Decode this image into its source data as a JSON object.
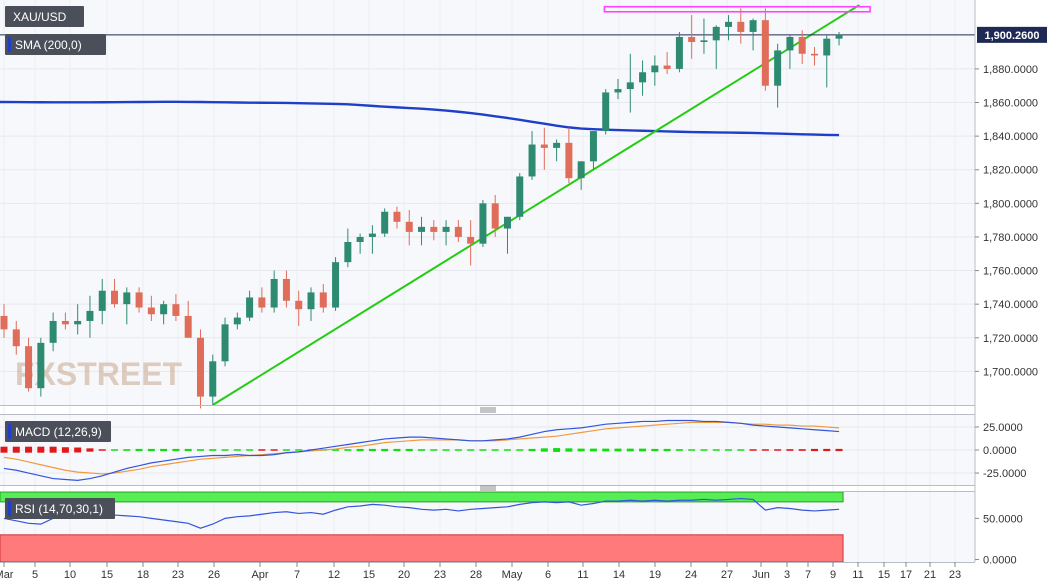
{
  "symbol_label": "XAU/USD",
  "price_tag": "1,900.2600",
  "watermark": "FXSTREET",
  "colors": {
    "up": "#2e8b72",
    "down": "#e06c5a",
    "sma": "#1f3fc9",
    "trendline": "#22cc11",
    "resistance": "#ff44ff",
    "macd_line": "#3355dd",
    "signal_line": "#f09a40",
    "hist_pos": "#11dd11",
    "hist_neg": "#e01818",
    "rsi_line": "#3355dd",
    "rsi_over": "#55ee55",
    "rsi_under": "#ff7b7b",
    "panel_bg": "#f7f8fb"
  },
  "chart_data": [
    {
      "type": "candlestick",
      "title": "XAU/USD",
      "ylim": [
        1680,
        1921
      ],
      "y_ticks": [
        "1,700.0000",
        "1,720.0000",
        "1,740.0000",
        "1,760.0000",
        "1,780.0000",
        "1,800.0000",
        "1,820.0000",
        "1,840.0000",
        "1,860.0000",
        "1,880.0000"
      ],
      "y_tick_values": [
        1700,
        1720,
        1740,
        1760,
        1780,
        1800,
        1820,
        1840,
        1860,
        1880
      ],
      "x_tick_labels": [
        "Mar",
        "5",
        "10",
        "15",
        "18",
        "23",
        "26",
        "Apr",
        "7",
        "12",
        "15",
        "20",
        "23",
        "28",
        "May",
        "6",
        "11",
        "14",
        "19",
        "24",
        "27",
        "Jun",
        "3",
        "7",
        "9",
        "11",
        "15",
        "17",
        "21",
        "23"
      ],
      "candles": [
        [
          1733,
          1740,
          1720,
          1725
        ],
        [
          1725,
          1730,
          1710,
          1715
        ],
        [
          1715,
          1720,
          1688,
          1690
        ],
        [
          1690,
          1720,
          1685,
          1717
        ],
        [
          1717,
          1735,
          1712,
          1730
        ],
        [
          1730,
          1735,
          1725,
          1728
        ],
        [
          1728,
          1740,
          1722,
          1730
        ],
        [
          1730,
          1745,
          1720,
          1736
        ],
        [
          1736,
          1755,
          1728,
          1748
        ],
        [
          1748,
          1755,
          1738,
          1740
        ],
        [
          1740,
          1750,
          1728,
          1747
        ],
        [
          1747,
          1750,
          1735,
          1738
        ],
        [
          1738,
          1745,
          1730,
          1734
        ],
        [
          1734,
          1742,
          1728,
          1740
        ],
        [
          1740,
          1746,
          1730,
          1733
        ],
        [
          1733,
          1742,
          1720,
          1720
        ],
        [
          1720,
          1725,
          1678,
          1685
        ],
        [
          1685,
          1710,
          1680,
          1706
        ],
        [
          1706,
          1732,
          1703,
          1728
        ],
        [
          1728,
          1735,
          1725,
          1732
        ],
        [
          1732,
          1748,
          1730,
          1744
        ],
        [
          1744,
          1750,
          1735,
          1738
        ],
        [
          1738,
          1760,
          1735,
          1755
        ],
        [
          1755,
          1760,
          1738,
          1742
        ],
        [
          1742,
          1748,
          1727,
          1737
        ],
        [
          1737,
          1750,
          1730,
          1747
        ],
        [
          1747,
          1752,
          1735,
          1738
        ],
        [
          1738,
          1768,
          1736,
          1765
        ],
        [
          1765,
          1785,
          1762,
          1777
        ],
        [
          1777,
          1782,
          1770,
          1780
        ],
        [
          1780,
          1787,
          1770,
          1782
        ],
        [
          1782,
          1797,
          1780,
          1795
        ],
        [
          1795,
          1798,
          1785,
          1789
        ],
        [
          1789,
          1796,
          1775,
          1783
        ],
        [
          1783,
          1792,
          1775,
          1786
        ],
        [
          1786,
          1790,
          1778,
          1783
        ],
        [
          1783,
          1790,
          1775,
          1786
        ],
        [
          1786,
          1790,
          1777,
          1780
        ],
        [
          1780,
          1790,
          1763,
          1776
        ],
        [
          1776,
          1802,
          1774,
          1800
        ],
        [
          1800,
          1805,
          1780,
          1785
        ],
        [
          1785,
          1792,
          1770,
          1792
        ],
        [
          1792,
          1818,
          1790,
          1816
        ],
        [
          1816,
          1843,
          1814,
          1835
        ],
        [
          1835,
          1845,
          1820,
          1833
        ],
        [
          1833,
          1838,
          1825,
          1836
        ],
        [
          1836,
          1845,
          1812,
          1815
        ],
        [
          1815,
          1825,
          1808,
          1825
        ],
        [
          1825,
          1843,
          1820,
          1843
        ],
        [
          1843,
          1868,
          1841,
          1866
        ],
        [
          1866,
          1874,
          1862,
          1868
        ],
        [
          1868,
          1889,
          1854,
          1872
        ],
        [
          1872,
          1885,
          1864,
          1878
        ],
        [
          1878,
          1888,
          1870,
          1882
        ],
        [
          1882,
          1890,
          1877,
          1880
        ],
        [
          1880,
          1902,
          1878,
          1899
        ],
        [
          1899,
          1912,
          1886,
          1896
        ],
        [
          1896,
          1910,
          1889,
          1897
        ],
        [
          1897,
          1906,
          1880,
          1905
        ],
        [
          1905,
          1912,
          1897,
          1908
        ],
        [
          1908,
          1916,
          1895,
          1902
        ],
        [
          1902,
          1910,
          1891,
          1909
        ],
        [
          1909,
          1916,
          1867,
          1870
        ],
        [
          1870,
          1895,
          1857,
          1891
        ],
        [
          1891,
          1900,
          1880,
          1899
        ],
        [
          1899,
          1903,
          1883,
          1889
        ],
        [
          1889,
          1893,
          1882,
          1888
        ],
        [
          1888,
          1900,
          1869,
          1898
        ],
        [
          1898,
          1902,
          1894,
          1900.26
        ]
      ],
      "sma_200": [
        1860.3,
        1860.25,
        1860.2,
        1860.15,
        1860.1,
        1860.1,
        1860.1,
        1860.12,
        1860.15,
        1860.2,
        1860.25,
        1860.3,
        1860.35,
        1860.4,
        1860.4,
        1860.35,
        1860.3,
        1860.2,
        1860.1,
        1860.0,
        1859.9,
        1859.85,
        1859.8,
        1859.75,
        1859.6,
        1859.45,
        1859.3,
        1859.15,
        1858.9,
        1858.5,
        1858.0,
        1857.5,
        1857.1,
        1856.7,
        1856.3,
        1855.8,
        1855.2,
        1854.5,
        1853.7,
        1852.8,
        1851.8,
        1850.8,
        1849.7,
        1848.5,
        1847.4,
        1846.2,
        1845.2,
        1844.5,
        1844.1,
        1843.8,
        1843.6,
        1843.4,
        1843.2,
        1843.0,
        1842.8,
        1842.6,
        1842.4,
        1842.3,
        1842.2,
        1842.1,
        1842.0,
        1841.9,
        1841.7,
        1841.5,
        1841.3,
        1841.1,
        1840.9,
        1840.7,
        1840.6
      ],
      "series": [
        {
          "name": "SMA (200,0)",
          "kind": "sma"
        }
      ],
      "horizontal_line": 1900.26,
      "trendline": {
        "from": [
          17,
          1680
        ],
        "to": [
          69,
          1918
        ]
      },
      "resistance_box": {
        "x_from": 48,
        "x_to": 68,
        "y_from": 1914,
        "y_to": 1917
      }
    },
    {
      "type": "macd",
      "title": "MACD (12,26,9)",
      "ylim": [
        -38,
        38
      ],
      "y_ticks": [
        "25.0000",
        "0.0000",
        "-25.0000"
      ],
      "y_tick_values": [
        25,
        0,
        -25
      ],
      "macd": [
        -20,
        -22,
        -25,
        -28,
        -31,
        -32,
        -33,
        -31,
        -28,
        -24,
        -20,
        -17,
        -14,
        -12,
        -10,
        -8,
        -7,
        -6,
        -6,
        -5,
        -6,
        -6,
        -5,
        -3,
        -2,
        0,
        2,
        4,
        6,
        8,
        10,
        12,
        13,
        14,
        14,
        13,
        12,
        11,
        10,
        10,
        11,
        12,
        14,
        17,
        20,
        22,
        23,
        24,
        26,
        28,
        29,
        30,
        31,
        31,
        32,
        32,
        32,
        31,
        31,
        30,
        29,
        27,
        26,
        25,
        24,
        23,
        22,
        21,
        20
      ],
      "signal": [
        -8,
        -10,
        -13,
        -16,
        -19,
        -22,
        -24,
        -25,
        -26,
        -25,
        -23,
        -21,
        -18,
        -16,
        -14,
        -12,
        -10,
        -9,
        -8,
        -7,
        -6,
        -5,
        -4,
        -3,
        -2,
        -1,
        0,
        1,
        3,
        4,
        6,
        8,
        9,
        10,
        11,
        11,
        11,
        11,
        10,
        10,
        10,
        11,
        12,
        13,
        14,
        15,
        17,
        19,
        21,
        23,
        24,
        25,
        26,
        27,
        28,
        29,
        30,
        30,
        30,
        30,
        29,
        28,
        28,
        27,
        27,
        26,
        26,
        25,
        24
      ]
    },
    {
      "type": "rsi",
      "title": "RSI (14,70,30,1)",
      "ylim": [
        -3,
        82
      ],
      "y_ticks": [
        "50.0000",
        "0.0000"
      ],
      "y_tick_values": [
        50,
        0
      ],
      "overbought": 70,
      "oversold": 30,
      "values": [
        50,
        47,
        44,
        43,
        50,
        54,
        52,
        54,
        55,
        54,
        53,
        52,
        50,
        48,
        46,
        44,
        38,
        43,
        50,
        52,
        53,
        55,
        57,
        58,
        56,
        57,
        55,
        60,
        64,
        65,
        67,
        66,
        64,
        63,
        61,
        60,
        61,
        59,
        61,
        62,
        63,
        64,
        67,
        69,
        70,
        69,
        70,
        66,
        68,
        71,
        71,
        72,
        71,
        72,
        71,
        72,
        72,
        73,
        72,
        73,
        74,
        73,
        60,
        63,
        62,
        60,
        59,
        60,
        61
      ]
    }
  ]
}
